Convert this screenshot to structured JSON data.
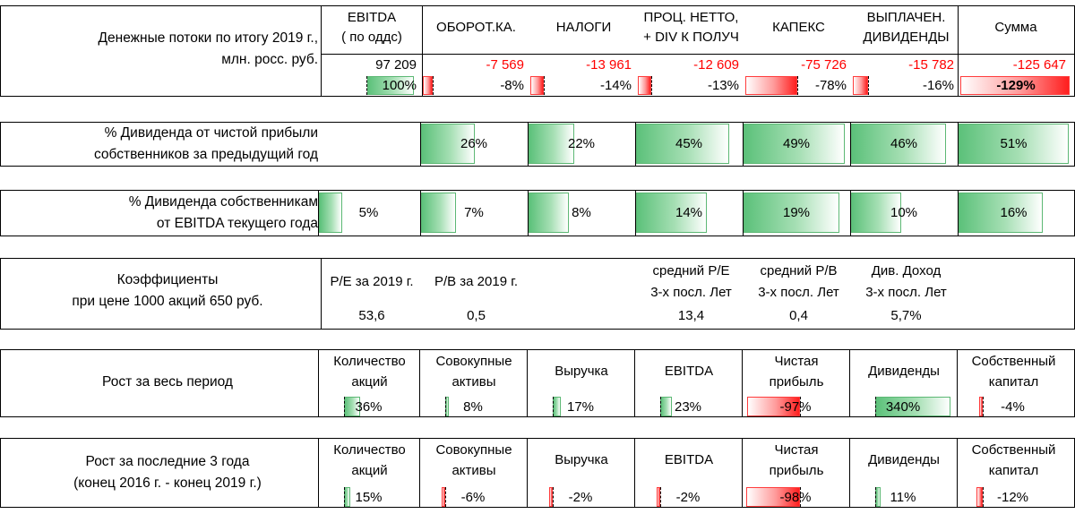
{
  "cashflow": {
    "label_line1": "Денежные потоки по итогу 2019 г.,",
    "label_line2": "млн. росс. руб.",
    "headers": [
      {
        "l1": "EBITDA",
        "l2": "( по оддс)"
      },
      {
        "l1": "ОБОРОТ.КА.",
        "l2": ""
      },
      {
        "l1": "НАЛОГИ",
        "l2": ""
      },
      {
        "l1": "ПРОЦ. НЕТТО,",
        "l2": "+ DIV К ПОЛУЧ"
      },
      {
        "l1": "КАПЕКС",
        "l2": ""
      },
      {
        "l1": "ВЫПЛАЧЕН.",
        "l2": "ДИВИДЕНДЫ"
      },
      {
        "l1": "Сумма",
        "l2": ""
      }
    ],
    "values": [
      "97 209",
      "-7 569",
      "-13 961",
      "-12 609",
      "-75 726",
      "-15 782",
      "-125 647"
    ],
    "percents": [
      "100%",
      "-8%",
      "-14%",
      "-13%",
      "-78%",
      "-16%",
      "-129%"
    ],
    "percent_numbers": [
      100,
      -8,
      -14,
      -13,
      -78,
      -16,
      -129
    ]
  },
  "div_net_profit": {
    "label_line1": "% Дивиденда от чистой прибыли",
    "label_line2": "собственников за предыдущий год",
    "values": [
      "",
      "26%",
      "22%",
      "45%",
      "49%",
      "46%",
      "51%"
    ],
    "numbers": [
      0,
      26,
      22,
      45,
      49,
      46,
      51
    ]
  },
  "div_ebitda": {
    "label_line1": "% Дивиденда собственникам",
    "label_line2": "от EBITDA текущего года",
    "values": [
      "5%",
      "7%",
      "8%",
      "14%",
      "19%",
      "10%",
      "16%"
    ],
    "numbers": [
      5,
      7,
      8,
      14,
      19,
      10,
      16
    ]
  },
  "ratios": {
    "label_line1": "Коэффициенты",
    "label_line2": "при цене 1000 акций 650 руб.",
    "items": [
      {
        "h1": "P/E за 2019 г.",
        "h2": "",
        "value": "53,6"
      },
      {
        "h1": "P/B за 2019 г.",
        "h2": "",
        "value": "0,5"
      },
      {
        "h1": "",
        "h2": "",
        "value": ""
      },
      {
        "h1": "средний P/E",
        "h2": "3-х посл. Лет",
        "value": "13,4"
      },
      {
        "h1": "средний P/B",
        "h2": "3-х посл. Лет",
        "value": "0,4"
      },
      {
        "h1": "Див. Доход",
        "h2": "3-х посл. Лет",
        "value": "5,7%"
      },
      {
        "h1": "",
        "h2": "",
        "value": ""
      }
    ]
  },
  "growth_total": {
    "label": "Рост за весь период",
    "headers": [
      {
        "l1": "Количество",
        "l2": "акций"
      },
      {
        "l1": "Совокупные",
        "l2": "активы"
      },
      {
        "l1": "Выручка",
        "l2": ""
      },
      {
        "l1": "EBITDA",
        "l2": ""
      },
      {
        "l1": "Чистая",
        "l2": "прибыль"
      },
      {
        "l1": "Дивиденды",
        "l2": ""
      },
      {
        "l1": "Собственный",
        "l2": "капитал"
      }
    ],
    "values": [
      "36%",
      "8%",
      "17%",
      "23%",
      "-97%",
      "340%",
      "-4%"
    ],
    "numbers": [
      36,
      8,
      17,
      23,
      -97,
      340,
      -4
    ]
  },
  "growth_3y": {
    "label_line1": "Рост за последние 3 года",
    "label_line2": "(конец 2016 г. - конец 2019 г.)",
    "headers": [
      {
        "l1": "Количество",
        "l2": "акций"
      },
      {
        "l1": "Совокупные",
        "l2": "активы"
      },
      {
        "l1": "Выручка",
        "l2": ""
      },
      {
        "l1": "EBITDA",
        "l2": ""
      },
      {
        "l1": "Чистая",
        "l2": "прибыль"
      },
      {
        "l1": "Дивиденды",
        "l2": ""
      },
      {
        "l1": "Собственный",
        "l2": "капитал"
      }
    ],
    "values": [
      "15%",
      "-6%",
      "-2%",
      "-2%",
      "-98%",
      "11%",
      "-12%"
    ],
    "numbers": [
      15,
      -6,
      -2,
      -2,
      -98,
      11,
      -12
    ]
  },
  "colors": {
    "positive": "#5cc17a",
    "negative": "#ff1e1e"
  }
}
